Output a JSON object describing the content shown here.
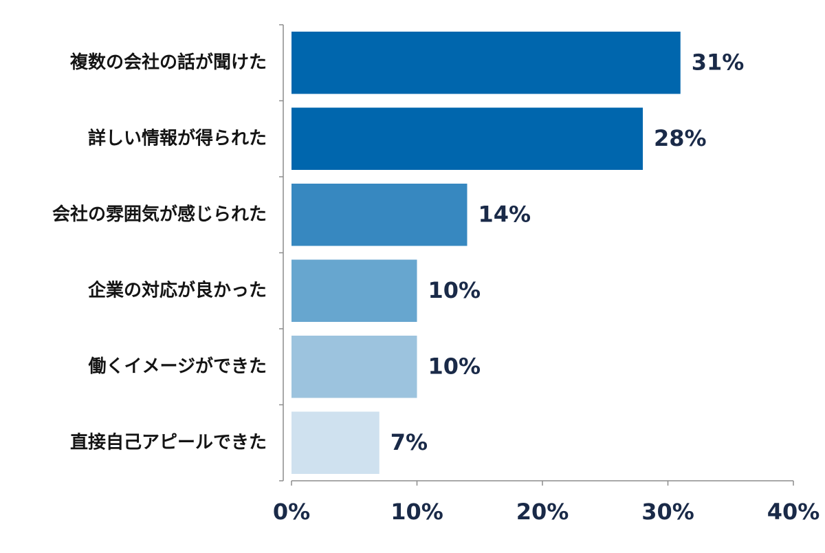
{
  "chart_data": {
    "type": "bar",
    "orientation": "horizontal",
    "categories": [
      "複数の会社の話が聞けた",
      "詳しい情報が得られた",
      "会社の雰囲気が感じられた",
      "企業の対応が良かった",
      "働くイメージができた",
      "直接自己アピールできた"
    ],
    "values": [
      31,
      28,
      14,
      10,
      10,
      7
    ],
    "value_labels": [
      "31%",
      "28%",
      "14%",
      "10%",
      "10%",
      "7%"
    ],
    "bar_colors": [
      "#0066ad",
      "#0066ad",
      "#3788c0",
      "#67a6cf",
      "#9cc3de",
      "#cfe1ef"
    ],
    "xlim": [
      0,
      40
    ],
    "x_ticks": [
      0,
      10,
      20,
      30,
      40
    ],
    "x_tick_labels": [
      "0%",
      "10%",
      "20%",
      "30%",
      "40%"
    ],
    "title": "",
    "xlabel": "",
    "ylabel": "",
    "grid": false,
    "legend": "none"
  }
}
